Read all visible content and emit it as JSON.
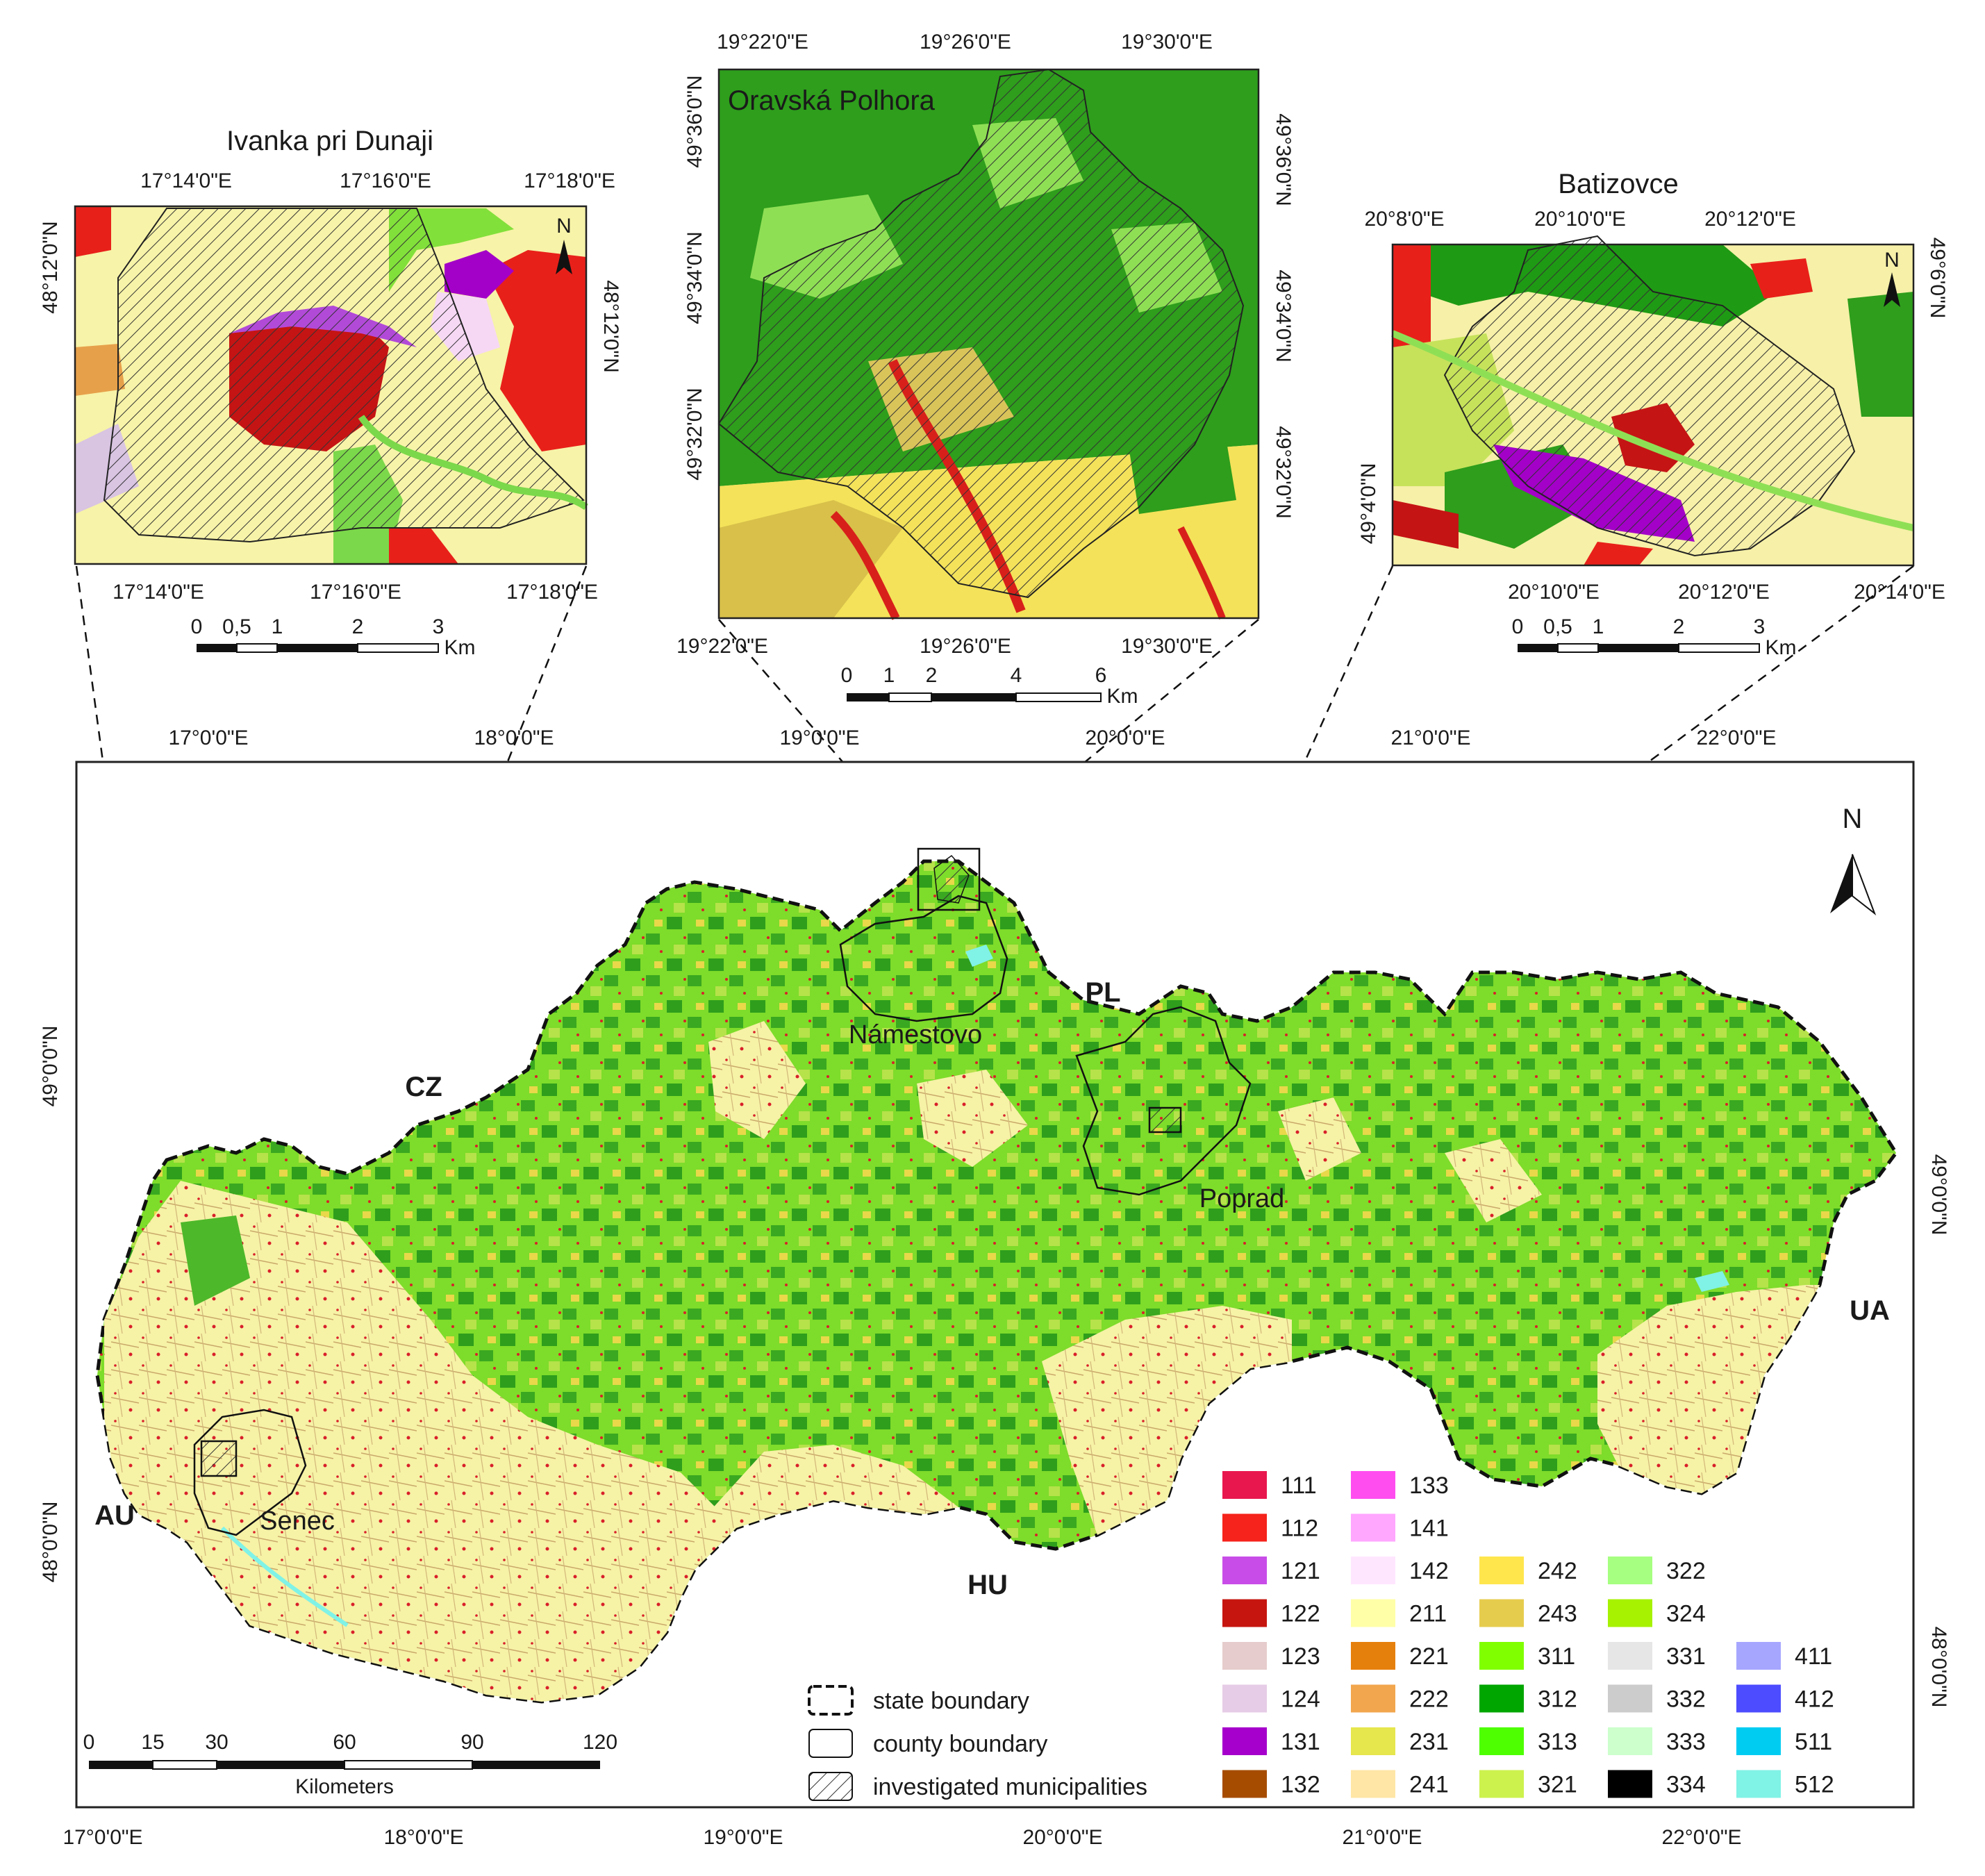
{
  "main_map": {
    "lon_ticks": [
      "17°0'0\"E",
      "18°0'0\"E",
      "19°0'0\"E",
      "20°0'0\"E",
      "21°0'0\"E",
      "22°0'0\"E"
    ],
    "lon_ticks_top": [
      "17°0'0\"E",
      "18°0'0\"E",
      "19°0'0\"E",
      "20°0'0\"E",
      "21°0'0\"E",
      "22°0'0\"E"
    ],
    "lat_ticks_left": [
      "49°0'0\"N",
      "48°0'0\"N"
    ],
    "lat_ticks_right": [
      "49°0'0\"N",
      "48°0'0\"N"
    ],
    "countries": [
      "CZ",
      "PL",
      "AU",
      "HU",
      "UA"
    ],
    "towns": [
      "Námestovo",
      "Poprad",
      "Senec"
    ],
    "scale": {
      "ticks": [
        "0",
        "15",
        "30",
        "60",
        "90",
        "120"
      ],
      "unit": "Kilometers"
    },
    "north": "N"
  },
  "insets": [
    {
      "title": "Ivanka pri Dunaji",
      "top_ticks": [
        "17°14'0\"E",
        "17°16'0\"E",
        "17°18'0\"E"
      ],
      "bottom_ticks": [
        "17°14'0\"E",
        "17°16'0\"E",
        "17°18'0\"E"
      ],
      "left_ticks": [
        "48°12'0\"N"
      ],
      "right_ticks": [
        "48°12'0\"N"
      ],
      "scale": {
        "ticks": [
          "0",
          "0,5",
          "1",
          "2",
          "3"
        ],
        "unit": "Km"
      },
      "north": "N"
    },
    {
      "title": "Oravská Polhora",
      "top_ticks": [
        "19°22'0\"E",
        "19°26'0\"E",
        "19°30'0\"E"
      ],
      "bottom_ticks": [
        "19°22'0\"E",
        "19°26'0\"E",
        "19°30'0\"E"
      ],
      "left_ticks": [
        "49°36'0\"N",
        "49°34'0\"N",
        "49°32'0\"N"
      ],
      "right_ticks": [
        "49°36'0\"N",
        "49°34'0\"N",
        "49°32'0\"N"
      ],
      "scale": {
        "ticks": [
          "0",
          "1",
          "2",
          "4",
          "6"
        ],
        "unit": "Km"
      }
    },
    {
      "title": "Batizovce",
      "top_ticks": [
        "20°8'0\"E",
        "20°10'0\"E",
        "20°12'0\"E"
      ],
      "bottom_ticks": [
        "20°10'0\"E",
        "20°12'0\"E",
        "20°14'0\"E"
      ],
      "left_ticks": [
        "49°4'0\"N"
      ],
      "right_ticks": [
        "49°6'0\"N"
      ],
      "scale": {
        "ticks": [
          "0",
          "0,5",
          "1",
          "2",
          "3"
        ],
        "unit": "Km"
      },
      "north": "N"
    }
  ],
  "legend": {
    "boundaries": [
      {
        "label": "state boundary"
      },
      {
        "label": "county boundary"
      },
      {
        "label": "investigated municipalities"
      }
    ],
    "classes": [
      {
        "code": "111",
        "color": "#e8174e"
      },
      {
        "code": "112",
        "color": "#f5231b"
      },
      {
        "code": "121",
        "color": "#c84de8"
      },
      {
        "code": "122",
        "color": "#c6150f"
      },
      {
        "code": "123",
        "color": "#e6cccc"
      },
      {
        "code": "124",
        "color": "#e6cce6"
      },
      {
        "code": "131",
        "color": "#a600cc"
      },
      {
        "code": "132",
        "color": "#a64c00"
      },
      {
        "code": "133",
        "color": "#ff4df0"
      },
      {
        "code": "141",
        "color": "#ffa6ff"
      },
      {
        "code": "142",
        "color": "#ffe6ff"
      },
      {
        "code": "211",
        "color": "#ffffa8"
      },
      {
        "code": "221",
        "color": "#e6800d"
      },
      {
        "code": "222",
        "color": "#f2a64d"
      },
      {
        "code": "231",
        "color": "#e6e64d"
      },
      {
        "code": "241",
        "color": "#ffe6a6"
      },
      {
        "code": "242",
        "color": "#ffe64d"
      },
      {
        "code": "243",
        "color": "#e6cc4d"
      },
      {
        "code": "311",
        "color": "#80ff00"
      },
      {
        "code": "312",
        "color": "#00a600"
      },
      {
        "code": "313",
        "color": "#4dff00"
      },
      {
        "code": "321",
        "color": "#ccf24d"
      },
      {
        "code": "322",
        "color": "#a6ff80"
      },
      {
        "code": "324",
        "color": "#a6f200"
      },
      {
        "code": "331",
        "color": "#e6e6e6"
      },
      {
        "code": "332",
        "color": "#cccccc"
      },
      {
        "code": "333",
        "color": "#ccffcc"
      },
      {
        "code": "334",
        "color": "#000000"
      },
      {
        "code": "411",
        "color": "#a6a6ff"
      },
      {
        "code": "412",
        "color": "#4d4dff"
      },
      {
        "code": "511",
        "color": "#00ccf2"
      },
      {
        "code": "512",
        "color": "#80f2e6"
      }
    ]
  }
}
